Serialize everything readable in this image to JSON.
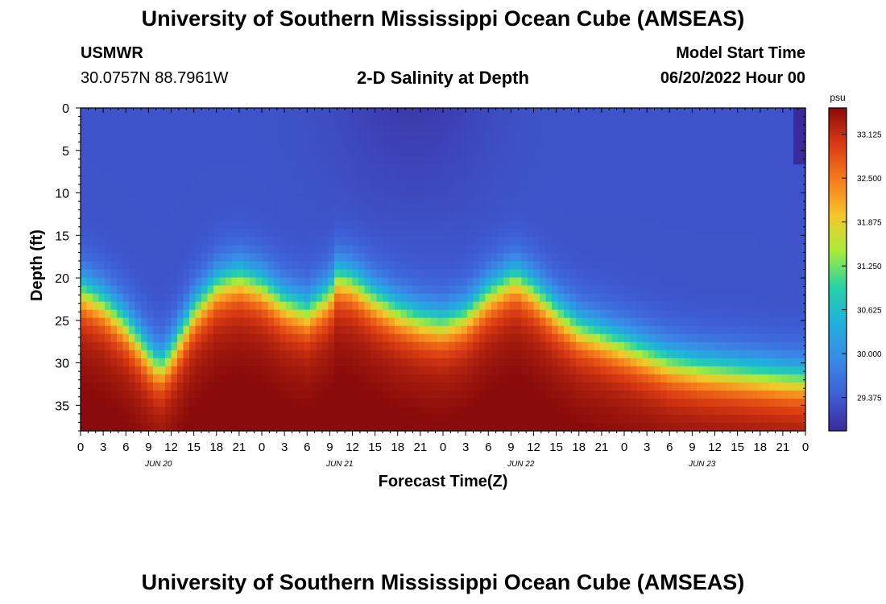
{
  "header": {
    "title": "University of Southern Mississippi Ocean Cube (AMSEAS)",
    "station_id": "USMWR",
    "coordinates": "30.0757N  88.7961W",
    "subtitle": "2-D Salinity at Depth",
    "model_start_label": "Model Start Time",
    "model_start_value": "06/20/2022 Hour 00"
  },
  "footer": {
    "title": "University of Southern Mississippi Ocean Cube (AMSEAS)"
  },
  "chart_data": {
    "type": "heatmap",
    "title": "2-D Salinity at Depth",
    "xlabel": "Forecast Time(Z)",
    "ylabel": "Depth (ft)",
    "units": "psu",
    "x_range_hours": [
      0,
      96
    ],
    "y_range_ft": [
      0,
      38
    ],
    "x_tick_labels": [
      "0",
      "3",
      "6",
      "9",
      "12",
      "15",
      "18",
      "21",
      "0",
      "3",
      "6",
      "9",
      "12",
      "15",
      "18",
      "21",
      "0",
      "3",
      "6",
      "9",
      "12",
      "15",
      "18",
      "21",
      "0",
      "3",
      "6",
      "9",
      "12",
      "15",
      "18",
      "21",
      "0"
    ],
    "date_labels": [
      {
        "label": "JUN 20",
        "hour": 10
      },
      {
        "label": "JUN 21",
        "hour": 34
      },
      {
        "label": "JUN 22",
        "hour": 58
      },
      {
        "label": "JUN 23",
        "hour": 82
      }
    ],
    "y_ticks": [
      0,
      5,
      10,
      15,
      20,
      25,
      30,
      35
    ],
    "colorbar": {
      "label": "psu",
      "min": 28.9,
      "max": 33.5,
      "ticks": [
        "33.125",
        "32.500",
        "31.875",
        "31.250",
        "30.625",
        "30.000",
        "29.375"
      ],
      "colors": [
        "#3a2a9a",
        "#3f5fd6",
        "#3a8ae8",
        "#1fb0dc",
        "#27d2a8",
        "#a6ec3a",
        "#f5c52a",
        "#f77c1c",
        "#d93a13",
        "#8a0b0b"
      ]
    },
    "halocline_depth_ft": {
      "hours": [
        0,
        3,
        6,
        9,
        10.5,
        12,
        15,
        18,
        21,
        24,
        27,
        30,
        33,
        34,
        36,
        39,
        42,
        45,
        48,
        51,
        54,
        57,
        58,
        60,
        63,
        66,
        69,
        72,
        75,
        78,
        81,
        82,
        84,
        87,
        90,
        93,
        96
      ],
      "depth": [
        20,
        21.5,
        24,
        27.5,
        29,
        27.5,
        22.5,
        19.5,
        18.5,
        19.5,
        21.5,
        22.5,
        20.5,
        18.5,
        19,
        21,
        22.5,
        23.5,
        24,
        23,
        20.5,
        18.8,
        18.8,
        20,
        22.5,
        24.5,
        25.5,
        26.5,
        27.5,
        28.5,
        29,
        29.2,
        29.4,
        29.7,
        30,
        30.3,
        30.5
      ]
    },
    "surface_salinity_psu": 29.3,
    "bottom_salinity_psu": 33.3
  }
}
